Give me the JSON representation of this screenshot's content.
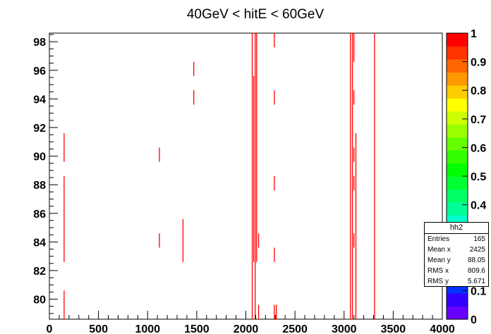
{
  "chart_data": {
    "type": "scatter",
    "title": "40GeV < hitE < 60GeV",
    "xlabel": "",
    "ylabel": "",
    "xlim": [
      0,
      4000
    ],
    "ylim": [
      78.6,
      98.6
    ],
    "x_ticks": [
      "0",
      "500",
      "1000",
      "1500",
      "2000",
      "2500",
      "3000",
      "3500",
      "4000"
    ],
    "y_ticks": [
      "80",
      "82",
      "84",
      "86",
      "88",
      "90",
      "92",
      "94",
      "96",
      "98"
    ],
    "series_color": "#ff0000",
    "segments": [
      {
        "x": 150,
        "y0": 78.6,
        "y1": 80.6
      },
      {
        "x": 150,
        "y0": 82.6,
        "y1": 88.6
      },
      {
        "x": 150,
        "y0": 89.6,
        "y1": 91.6
      },
      {
        "x": 1120,
        "y0": 89.6,
        "y1": 90.6
      },
      {
        "x": 1120,
        "y0": 83.6,
        "y1": 84.6
      },
      {
        "x": 1360,
        "y0": 82.6,
        "y1": 85.6
      },
      {
        "x": 1470,
        "y0": 93.6,
        "y1": 94.6
      },
      {
        "x": 1470,
        "y0": 95.6,
        "y1": 96.6
      },
      {
        "x": 2065,
        "y0": 78.6,
        "y1": 98.6
      },
      {
        "x": 2080,
        "y0": 82.6,
        "y1": 95.6
      },
      {
        "x": 2095,
        "y0": 78.6,
        "y1": 98.6
      },
      {
        "x": 2110,
        "y0": 82.6,
        "y1": 98.6
      },
      {
        "x": 2130,
        "y0": 83.6,
        "y1": 84.6
      },
      {
        "x": 2130,
        "y0": 78.6,
        "y1": 79.6
      },
      {
        "x": 2290,
        "y0": 82.6,
        "y1": 83.6
      },
      {
        "x": 2290,
        "y0": 87.6,
        "y1": 88.6
      },
      {
        "x": 2290,
        "y0": 93.6,
        "y1": 94.6
      },
      {
        "x": 2290,
        "y0": 97.6,
        "y1": 98.6
      },
      {
        "x": 2290,
        "y0": 78.6,
        "y1": 79.6
      },
      {
        "x": 2310,
        "y0": 78.6,
        "y1": 79.6
      },
      {
        "x": 3065,
        "y0": 78.6,
        "y1": 98.6
      },
      {
        "x": 3085,
        "y0": 78.6,
        "y1": 98.6
      },
      {
        "x": 3100,
        "y0": 83.6,
        "y1": 84.6
      },
      {
        "x": 3100,
        "y0": 87.6,
        "y1": 88.6
      },
      {
        "x": 3100,
        "y0": 89.6,
        "y1": 90.6
      },
      {
        "x": 3100,
        "y0": 93.6,
        "y1": 94.6
      },
      {
        "x": 3100,
        "y0": 96.6,
        "y1": 98.6
      },
      {
        "x": 3120,
        "y0": 78.6,
        "y1": 91.6
      },
      {
        "x": 3310,
        "y0": 78.6,
        "y1": 98.6
      }
    ],
    "colorbar": {
      "min": 0,
      "max": 1,
      "labels": [
        "0",
        "0.1",
        "0.2",
        "0.3",
        "0.4",
        "0.5",
        "0.6",
        "0.7",
        "0.8",
        "0.9",
        "1"
      ],
      "colors": [
        "#6600ff",
        "#3300ff",
        "#0033ff",
        "#0066ff",
        "#0099ff",
        "#00ccff",
        "#00ffff",
        "#00ffcc",
        "#00ff99",
        "#00ff66",
        "#00ff33",
        "#00ff00",
        "#33ff00",
        "#66ff00",
        "#99ff00",
        "#ccff00",
        "#ffff00",
        "#ffcc00",
        "#ff9900",
        "#ff6600",
        "#ff3300",
        "#ff0000"
      ]
    },
    "stats": {
      "name": "hh2",
      "rows": [
        {
          "label": "Entries",
          "value": "165"
        },
        {
          "label": "Mean x",
          "value": "2425"
        },
        {
          "label": "Mean y",
          "value": "88.05"
        },
        {
          "label": "RMS x",
          "value": "809.6"
        },
        {
          "label": "RMS y",
          "value": "5.671"
        }
      ]
    }
  }
}
